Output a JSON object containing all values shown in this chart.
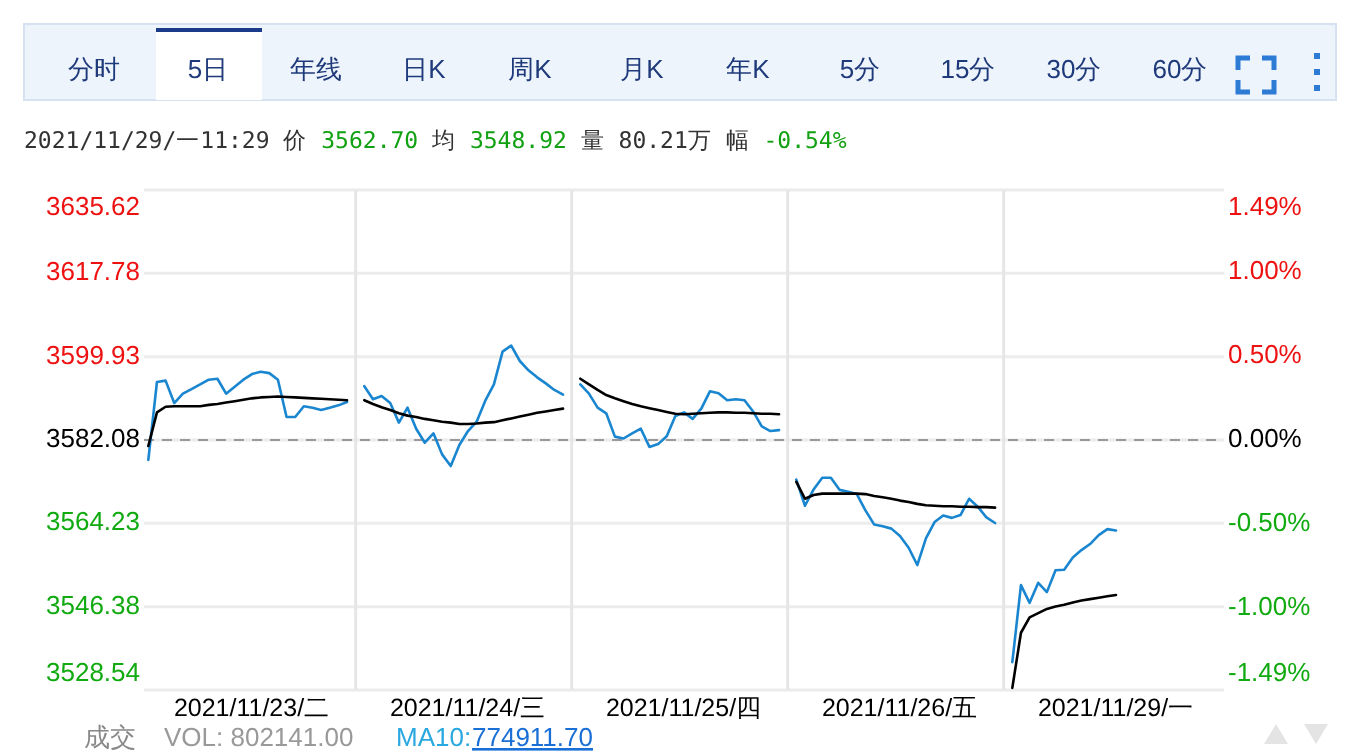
{
  "chart_data": {
    "type": "line",
    "annotations": [
      "分时",
      "5日",
      "年线",
      "日K",
      "周K",
      "月K",
      "年K",
      "5分",
      "15分",
      "30分",
      "60分",
      "2021/11/29/一11:29 价",
      "3562.70",
      "均",
      "3548.92",
      "量 80.21万 幅",
      "-0.54%",
      "成交",
      "VOL: 802141.00",
      "MA10:",
      "774911.70"
    ],
    "categories": [
      null,
      null,
      null,
      null,
      null,
      null,
      null,
      null,
      null,
      null,
      null,
      null,
      "2021/11/23/二",
      null,
      null,
      null,
      null,
      null,
      null,
      null,
      null,
      null,
      null,
      null,
      null,
      null,
      null,
      null,
      null,
      null,
      null,
      null,
      null,
      null,
      null,
      null,
      null,
      "2021/11/24/三",
      null,
      null,
      null,
      null,
      null,
      null,
      null,
      null,
      null,
      null,
      null,
      null,
      null,
      null,
      null,
      null,
      null,
      null,
      null,
      null,
      null,
      null,
      null,
      null,
      "2021/11/25/四",
      null,
      null,
      null,
      null,
      null,
      null,
      null,
      null,
      null,
      null,
      null,
      null,
      null,
      null,
      null,
      null,
      null,
      null,
      null,
      null,
      null,
      null,
      null,
      null,
      "2021/11/26/五",
      null,
      null,
      null,
      null,
      null,
      null,
      null,
      null,
      null,
      null,
      null,
      null,
      null,
      null,
      null,
      null,
      null,
      null,
      null,
      null,
      null,
      null,
      null,
      null,
      "2021/11/29/一",
      null,
      null,
      null,
      null,
      null,
      null,
      null,
      null,
      null,
      null,
      null,
      null
    ],
    "ylim": [
      3528.54,
      3635.62
    ],
    "yticks": [
      3528.54,
      3546.38,
      3564.23,
      3582.08,
      3599.93,
      3617.78,
      3635.62
    ],
    "y2lim": [
      -1.49,
      1.49
    ],
    "y2ticks": [
      {
        "value": -1.49,
        "label": "-1.49%"
      },
      {
        "value": -1.0,
        "label": "-1.00%"
      },
      {
        "value": -0.5,
        "label": "-0.50%"
      },
      {
        "value": 0,
        "label": "0.00%"
      },
      {
        "value": 0.5,
        "label": "0.50%"
      },
      {
        "value": 1.0,
        "label": "1.00%"
      },
      {
        "value": 1.49,
        "label": "1.49%"
      }
    ],
    "grid": "y",
    "ref_lines": [
      {
        "axis": "y",
        "value": 3582.08,
        "color": "#999999",
        "line_style": "dashed"
      }
    ],
    "series": [
      {
        "color": "#1a86d0",
        "values": [
          3577.8,
          3594.5,
          3594.8,
          3590.0,
          3592.0,
          3593.0,
          3594.0,
          3595.0,
          3595.2,
          3592.0,
          3593.5,
          3595.0,
          3596.2,
          3596.7,
          3596.4,
          3595.0,
          3587.0,
          3587.0,
          3589.3,
          3589.0,
          3588.5,
          3589.0,
          3589.5,
          3590.2,
          null,
          3593.6,
          3590.8,
          3591.5,
          3590.0,
          3585.8,
          3589.0,
          3584.5,
          3581.5,
          3583.5,
          3579.0,
          3576.5,
          3581.0,
          3584.0,
          3586.0,
          3590.5,
          3594.0,
          3601.0,
          3602.3,
          3599.0,
          3597.0,
          3595.5,
          3594.2,
          3592.8,
          3591.8,
          null,
          3594.0,
          3592.0,
          3589.0,
          3587.8,
          3582.8,
          3582.4,
          3583.5,
          3584.5,
          3580.6,
          3581.2,
          3582.9,
          3587.2,
          3588.0,
          3586.6,
          3588.8,
          3592.5,
          3592.1,
          3590.6,
          3590.8,
          3590.6,
          3588.2,
          3585.0,
          3584.0,
          3584.2,
          null,
          3573.6,
          3568.0,
          3571.5,
          3574.0,
          3574.0,
          3571.4,
          3571.0,
          3570.5,
          3567.0,
          3564.0,
          3563.6,
          3563.1,
          3561.5,
          3559.0,
          3555.3,
          3561.0,
          3564.5,
          3565.9,
          3565.4,
          3566.0,
          3569.5,
          3567.8,
          3565.5,
          3564.3,
          null,
          3534.5,
          3551.0,
          3547.2,
          3551.5,
          3549.5,
          3554.2,
          3554.3,
          3556.9,
          3558.5,
          3559.8,
          3561.7,
          3563.0,
          3562.7,
          null,
          null,
          null,
          null,
          null,
          null,
          null,
          null,
          null,
          null,
          null,
          null
        ]
      },
      {
        "color": "#000000",
        "values": [
          3580.8,
          3588.0,
          3589.2,
          3589.3,
          3589.3,
          3589.3,
          3589.3,
          3589.6,
          3589.8,
          3590.1,
          3590.4,
          3590.7,
          3591.0,
          3591.2,
          3591.3,
          3591.4,
          3591.3,
          3591.2,
          3591.1,
          3591.0,
          3590.9,
          3590.8,
          3590.7,
          3590.6,
          null,
          3590.6,
          3589.8,
          3589.1,
          3588.5,
          3587.8,
          3587.3,
          3587.0,
          3586.6,
          3586.3,
          3586.0,
          3585.8,
          3585.5,
          3585.5,
          3585.6,
          3585.8,
          3585.9,
          3586.3,
          3586.7,
          3587.1,
          3587.5,
          3587.9,
          3588.2,
          3588.5,
          3588.8,
          null,
          3595.2,
          3594.0,
          3592.8,
          3591.7,
          3591.0,
          3590.4,
          3589.8,
          3589.3,
          3588.9,
          3588.5,
          3588.1,
          3587.7,
          3587.6,
          3587.7,
          3587.8,
          3587.9,
          3588.0,
          3588.0,
          3587.9,
          3587.9,
          3587.8,
          3587.7,
          3587.7,
          3587.6,
          null,
          3573.1,
          3569.5,
          3570.3,
          3570.6,
          3570.6,
          3570.6,
          3570.6,
          3570.6,
          3570.5,
          3570.1,
          3569.8,
          3569.5,
          3569.1,
          3568.8,
          3568.4,
          3568.1,
          3568.0,
          3567.9,
          3567.9,
          3567.8,
          3567.8,
          3567.7,
          3567.7,
          3567.6,
          null,
          3529.0,
          3540.8,
          3544.1,
          3545.0,
          3545.9,
          3546.4,
          3546.8,
          3547.3,
          3547.7,
          3548.0,
          3548.3,
          3548.6,
          3548.9,
          null,
          null,
          null,
          null,
          null,
          null,
          null,
          null,
          null,
          null,
          null,
          null
        ]
      }
    ]
  }
}
